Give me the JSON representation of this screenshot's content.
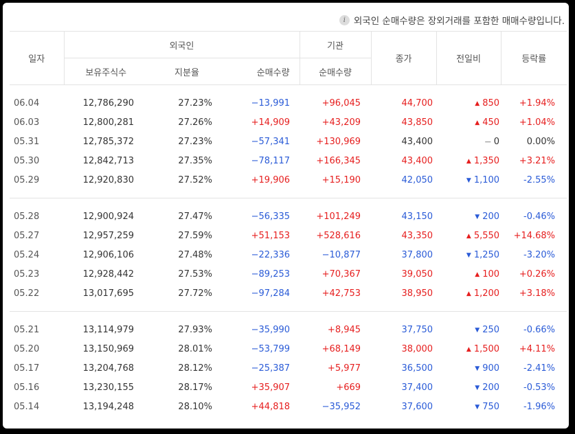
{
  "notice": "외국인 순매수량은 장외거래를 포함한 매매수량입니다.",
  "headers": {
    "date": "일자",
    "foreign": "외국인",
    "institution": "기관",
    "holdings": "보유주식수",
    "ratio": "지분율",
    "foreign_net": "순매수량",
    "inst_net": "순매수량",
    "close": "종가",
    "change": "전일비",
    "rate": "등락률"
  },
  "colors": {
    "up": "#e61e1e",
    "down": "#2a5bd7",
    "neutral": "#333333"
  },
  "groups": [
    [
      {
        "date": "06.04",
        "holdings": "12,786,290",
        "ratio": "27.23%",
        "foreign_net": "−13,991",
        "inst_net": "+96,045",
        "close": "44,700",
        "dir": "up",
        "change": "850",
        "rate": "+1.94%"
      },
      {
        "date": "06.03",
        "holdings": "12,800,281",
        "ratio": "27.26%",
        "foreign_net": "+14,909",
        "inst_net": "+43,209",
        "close": "43,850",
        "dir": "up",
        "change": "450",
        "rate": "+1.04%"
      },
      {
        "date": "05.31",
        "holdings": "12,785,372",
        "ratio": "27.23%",
        "foreign_net": "−57,341",
        "inst_net": "+130,969",
        "close": "43,400",
        "dir": "flat",
        "change": "0",
        "rate": "0.00%"
      },
      {
        "date": "05.30",
        "holdings": "12,842,713",
        "ratio": "27.35%",
        "foreign_net": "−78,117",
        "inst_net": "+166,345",
        "close": "43,400",
        "dir": "up",
        "change": "1,350",
        "rate": "+3.21%"
      },
      {
        "date": "05.29",
        "holdings": "12,920,830",
        "ratio": "27.52%",
        "foreign_net": "+19,906",
        "inst_net": "+15,190",
        "close": "42,050",
        "dir": "down",
        "change": "1,100",
        "rate": "-2.55%"
      }
    ],
    [
      {
        "date": "05.28",
        "holdings": "12,900,924",
        "ratio": "27.47%",
        "foreign_net": "−56,335",
        "inst_net": "+101,249",
        "close": "43,150",
        "dir": "down",
        "change": "200",
        "rate": "-0.46%"
      },
      {
        "date": "05.27",
        "holdings": "12,957,259",
        "ratio": "27.59%",
        "foreign_net": "+51,153",
        "inst_net": "+528,616",
        "close": "43,350",
        "dir": "up",
        "change": "5,550",
        "rate": "+14.68%"
      },
      {
        "date": "05.24",
        "holdings": "12,906,106",
        "ratio": "27.48%",
        "foreign_net": "−22,336",
        "inst_net": "−10,877",
        "close": "37,800",
        "dir": "down",
        "change": "1,250",
        "rate": "-3.20%"
      },
      {
        "date": "05.23",
        "holdings": "12,928,442",
        "ratio": "27.53%",
        "foreign_net": "−89,253",
        "inst_net": "+70,367",
        "close": "39,050",
        "dir": "up",
        "change": "100",
        "rate": "+0.26%"
      },
      {
        "date": "05.22",
        "holdings": "13,017,695",
        "ratio": "27.72%",
        "foreign_net": "−97,284",
        "inst_net": "+42,753",
        "close": "38,950",
        "dir": "up",
        "change": "1,200",
        "rate": "+3.18%"
      }
    ],
    [
      {
        "date": "05.21",
        "holdings": "13,114,979",
        "ratio": "27.93%",
        "foreign_net": "−35,990",
        "inst_net": "+8,945",
        "close": "37,750",
        "dir": "down",
        "change": "250",
        "rate": "-0.66%"
      },
      {
        "date": "05.20",
        "holdings": "13,150,969",
        "ratio": "28.01%",
        "foreign_net": "−53,799",
        "inst_net": "+68,149",
        "close": "38,000",
        "dir": "up",
        "change": "1,500",
        "rate": "+4.11%"
      },
      {
        "date": "05.17",
        "holdings": "13,204,768",
        "ratio": "28.12%",
        "foreign_net": "−25,387",
        "inst_net": "+5,977",
        "close": "36,500",
        "dir": "down",
        "change": "900",
        "rate": "-2.41%"
      },
      {
        "date": "05.16",
        "holdings": "13,230,155",
        "ratio": "28.17%",
        "foreign_net": "+35,907",
        "inst_net": "+669",
        "close": "37,400",
        "dir": "down",
        "change": "200",
        "rate": "-0.53%"
      },
      {
        "date": "05.14",
        "holdings": "13,194,248",
        "ratio": "28.10%",
        "foreign_net": "+44,818",
        "inst_net": "−35,952",
        "close": "37,600",
        "dir": "down",
        "change": "750",
        "rate": "-1.96%"
      }
    ]
  ]
}
